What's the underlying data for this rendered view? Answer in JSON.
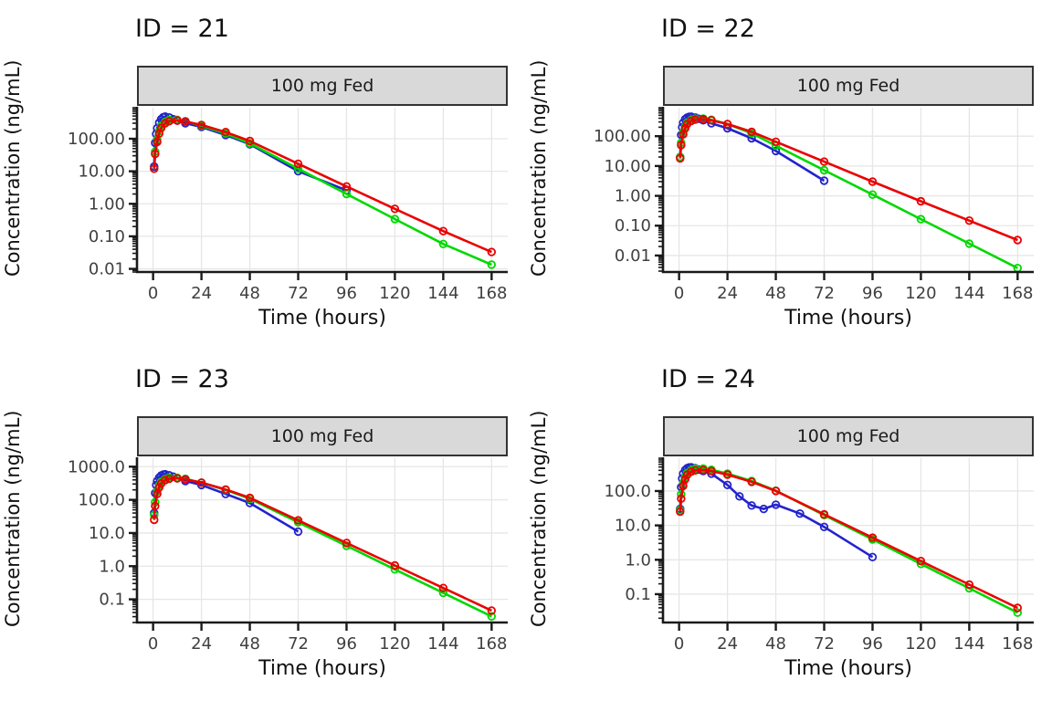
{
  "figure": {
    "background": "#ffffff",
    "strip_background": "#d9d9d9",
    "grid_color": "#e6e6e6",
    "axis_color": "#1a1a1a",
    "tick_label_color": "#404040",
    "legend": "none"
  },
  "chart_data": [
    {
      "type": "line",
      "title": "ID = 21",
      "strip_label": "100 mg Fed",
      "xlabel": "Time (hours)",
      "ylabel": "Concentration (ng/mL)",
      "x_scale": "linear",
      "y_scale": "log10",
      "xlim": [
        -8,
        176
      ],
      "ylim": [
        0.008,
        900
      ],
      "x_ticks": [
        0,
        24,
        48,
        72,
        96,
        120,
        144,
        168
      ],
      "y_ticks": [
        {
          "value": 100,
          "label": "100.00"
        },
        {
          "value": 10,
          "label": "10.00"
        },
        {
          "value": 1,
          "label": "1.00"
        },
        {
          "value": 0.1,
          "label": "0.10"
        },
        {
          "value": 0.01,
          "label": "0.01"
        }
      ],
      "series": [
        {
          "name": "observed",
          "color": "#2323CD",
          "x": [
            0.5,
            1,
            1.5,
            2,
            3,
            4,
            5,
            6,
            8,
            10,
            12,
            16,
            24,
            36,
            48,
            72,
            96
          ],
          "y": [
            14,
            75,
            140,
            210,
            310,
            400,
            460,
            480,
            450,
            400,
            360,
            300,
            230,
            130,
            68,
            10,
            2.6
          ]
        },
        {
          "name": "individual-prediction",
          "color": "#00D800",
          "x": [
            0.5,
            1,
            2,
            3,
            4,
            6,
            8,
            12,
            16,
            24,
            36,
            48,
            72,
            96,
            120,
            144,
            168
          ],
          "y": [
            12,
            40,
            95,
            170,
            250,
            330,
            375,
            380,
            345,
            250,
            145,
            72,
            12,
            2.0,
            0.34,
            0.058,
            0.0135
          ]
        },
        {
          "name": "population-prediction",
          "color": "#EA0000",
          "x": [
            0.5,
            1,
            2,
            3,
            4,
            6,
            8,
            12,
            16,
            24,
            36,
            48,
            72,
            96,
            120,
            144,
            168
          ],
          "y": [
            12,
            34,
            80,
            145,
            215,
            300,
            345,
            365,
            340,
            265,
            160,
            85,
            17,
            3.4,
            0.7,
            0.145,
            0.033
          ]
        }
      ]
    },
    {
      "type": "line",
      "title": "ID = 22",
      "strip_label": "100 mg Fed",
      "xlabel": "Time (hours)",
      "ylabel": "Concentration (ng/mL)",
      "x_scale": "linear",
      "y_scale": "log10",
      "xlim": [
        -8,
        176
      ],
      "ylim": [
        0.0028,
        900
      ],
      "x_ticks": [
        0,
        24,
        48,
        72,
        96,
        120,
        144,
        168
      ],
      "y_ticks": [
        {
          "value": 100,
          "label": "100.00"
        },
        {
          "value": 10,
          "label": "10.00"
        },
        {
          "value": 1,
          "label": "1.00"
        },
        {
          "value": 0.1,
          "label": "0.10"
        },
        {
          "value": 0.01,
          "label": "0.01"
        }
      ],
      "series": [
        {
          "name": "observed",
          "color": "#2323CD",
          "x": [
            0.5,
            1,
            1.5,
            2,
            3,
            4,
            5,
            6,
            8,
            10,
            12,
            16,
            24,
            36,
            48,
            72
          ],
          "y": [
            20,
            110,
            200,
            280,
            370,
            420,
            445,
            450,
            420,
            380,
            340,
            270,
            185,
            85,
            32,
            3.2
          ]
        },
        {
          "name": "individual-prediction",
          "color": "#00D800",
          "x": [
            0.5,
            1,
            2,
            3,
            4,
            6,
            8,
            12,
            16,
            24,
            36,
            48,
            72,
            96,
            120,
            144,
            168
          ],
          "y": [
            20,
            60,
            135,
            210,
            285,
            350,
            385,
            390,
            355,
            255,
            125,
            48,
            7.2,
            1.1,
            0.165,
            0.025,
            0.0038
          ]
        },
        {
          "name": "population-prediction",
          "color": "#EA0000",
          "x": [
            0.5,
            1,
            2,
            3,
            4,
            6,
            8,
            12,
            16,
            24,
            36,
            48,
            72,
            96,
            120,
            144,
            168
          ],
          "y": [
            18,
            50,
            115,
            185,
            255,
            325,
            360,
            370,
            340,
            255,
            140,
            65,
            14,
            3.0,
            0.66,
            0.148,
            0.033
          ]
        }
      ]
    },
    {
      "type": "line",
      "title": "ID = 23",
      "strip_label": "100 mg Fed",
      "xlabel": "Time (hours)",
      "ylabel": "Concentration (ng/mL)",
      "x_scale": "linear",
      "y_scale": "log10",
      "xlim": [
        -8,
        176
      ],
      "ylim": [
        0.02,
        1800
      ],
      "x_ticks": [
        0,
        24,
        48,
        72,
        96,
        120,
        144,
        168
      ],
      "y_ticks": [
        {
          "value": 1000,
          "label": "1000.0"
        },
        {
          "value": 100,
          "label": "100.0"
        },
        {
          "value": 10,
          "label": "10.0"
        },
        {
          "value": 1,
          "label": "1.0"
        },
        {
          "value": 0.1,
          "label": "0.1"
        }
      ],
      "series": [
        {
          "name": "observed",
          "color": "#2323CD",
          "x": [
            0.5,
            1,
            1.5,
            2,
            3,
            4,
            5,
            6,
            8,
            10,
            12,
            16,
            24,
            36,
            48,
            72
          ],
          "y": [
            40,
            160,
            280,
            370,
            470,
            540,
            580,
            590,
            550,
            500,
            450,
            370,
            280,
            150,
            80,
            11
          ]
        },
        {
          "name": "individual-prediction",
          "color": "#00D800",
          "x": [
            0.5,
            1,
            2,
            3,
            4,
            6,
            8,
            12,
            16,
            24,
            36,
            48,
            72,
            96,
            120,
            144,
            168
          ],
          "y": [
            35,
            85,
            180,
            270,
            350,
            425,
            460,
            465,
            430,
            330,
            200,
            108,
            21,
            4.1,
            0.8,
            0.156,
            0.0305
          ]
        },
        {
          "name": "population-prediction",
          "color": "#EA0000",
          "x": [
            0.5,
            1,
            2,
            3,
            4,
            6,
            8,
            12,
            16,
            24,
            36,
            48,
            72,
            96,
            120,
            144,
            168
          ],
          "y": [
            25,
            65,
            150,
            235,
            310,
            390,
            430,
            445,
            415,
            330,
            205,
            115,
            24,
            5.0,
            1.05,
            0.22,
            0.046
          ]
        }
      ]
    },
    {
      "type": "line",
      "title": "ID = 24",
      "strip_label": "100 mg Fed",
      "xlabel": "Time (hours)",
      "ylabel": "Concentration (ng/mL)",
      "x_scale": "linear",
      "y_scale": "log10",
      "xlim": [
        -8,
        176
      ],
      "ylim": [
        0.015,
        900
      ],
      "x_ticks": [
        0,
        24,
        48,
        72,
        96,
        120,
        144,
        168
      ],
      "y_ticks": [
        {
          "value": 100,
          "label": "100.0"
        },
        {
          "value": 10,
          "label": "10.0"
        },
        {
          "value": 1,
          "label": "1.0"
        },
        {
          "value": 0.1,
          "label": "0.1"
        }
      ],
      "series": [
        {
          "name": "observed",
          "color": "#2323CD",
          "x": [
            0.5,
            1,
            1.5,
            2,
            3,
            4,
            5,
            6,
            8,
            10,
            12,
            16,
            24,
            30,
            36,
            42,
            48,
            60,
            72,
            96
          ],
          "y": [
            30,
            130,
            230,
            320,
            410,
            460,
            485,
            490,
            460,
            420,
            380,
            320,
            150,
            70,
            38,
            30,
            40,
            22,
            9,
            1.2
          ]
        },
        {
          "name": "individual-prediction",
          "color": "#00D800",
          "x": [
            0.5,
            1,
            2,
            3,
            4,
            6,
            8,
            12,
            16,
            24,
            36,
            48,
            72,
            96,
            120,
            144,
            168
          ],
          "y": [
            28,
            80,
            170,
            255,
            335,
            405,
            445,
            450,
            415,
            320,
            195,
            102,
            20,
            3.9,
            0.76,
            0.148,
            0.029
          ]
        },
        {
          "name": "population-prediction",
          "color": "#EA0000",
          "x": [
            0.5,
            1,
            2,
            3,
            4,
            6,
            8,
            12,
            16,
            24,
            36,
            48,
            72,
            96,
            120,
            144,
            168
          ],
          "y": [
            25,
            60,
            140,
            220,
            295,
            365,
            400,
            410,
            380,
            300,
            185,
            100,
            21,
            4.4,
            0.92,
            0.19,
            0.04
          ]
        }
      ]
    }
  ]
}
